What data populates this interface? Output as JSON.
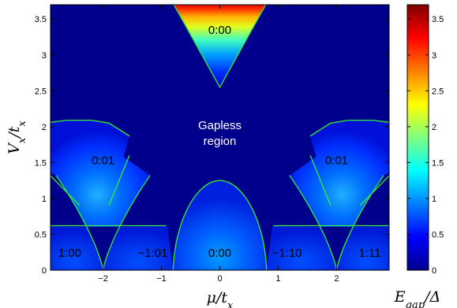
{
  "chart_data": {
    "type": "heatmap",
    "title": "",
    "xlabel": "μ/t_x",
    "ylabel": "V_x/t_x",
    "colorbar_label": "E_gap/Δ",
    "colormap": "jet",
    "xlim": [
      -2.9,
      2.9
    ],
    "ylim": [
      0,
      3.7
    ],
    "clim": [
      0,
      3.7
    ],
    "x_ticks": [
      -2,
      -1,
      0,
      1,
      2
    ],
    "x_tick_labels": [
      "−2",
      "−1",
      "0",
      "1",
      "2"
    ],
    "y_ticks": [
      0,
      0.5,
      1,
      1.5,
      2,
      2.5,
      3,
      3.5
    ],
    "y_tick_labels": [
      "0",
      "0.5",
      "1",
      "1.5",
      "2",
      "2.5",
      "3",
      "3.5"
    ],
    "colorbar_ticks": [
      0,
      0.5,
      1,
      1.5,
      2,
      2.5,
      3,
      3.5
    ],
    "colorbar_tick_labels": [
      "0",
      "0.5",
      "1",
      "1.5",
      "2",
      "2.5",
      "3",
      "3.5"
    ],
    "boundary_color": "#33ee33",
    "regions": [
      {
        "label": "0:00",
        "x": 0.0,
        "y": 3.35,
        "peak_gap": 3.7
      },
      {
        "label": "Gapless",
        "x": 0.0,
        "y": 2.02
      },
      {
        "label": "region",
        "x": 0.0,
        "y": 1.8
      },
      {
        "label": "0:01",
        "x": -2.0,
        "y": 1.53,
        "peak_gap": 1.0
      },
      {
        "label": "0:01",
        "x": 2.0,
        "y": 1.53,
        "peak_gap": 1.0
      },
      {
        "label": "1:00",
        "x": -2.57,
        "y": 0.24,
        "peak_gap": 0.3
      },
      {
        "label": "−1:01",
        "x": -1.15,
        "y": 0.24,
        "peak_gap": 0.2
      },
      {
        "label": "0:00",
        "x": 0.0,
        "y": 0.24,
        "peak_gap": 0.85
      },
      {
        "label": "−1:10",
        "x": 1.15,
        "y": 0.24,
        "peak_gap": 0.2
      },
      {
        "label": "1:11",
        "x": 2.57,
        "y": 0.24,
        "peak_gap": 0.3
      }
    ]
  }
}
